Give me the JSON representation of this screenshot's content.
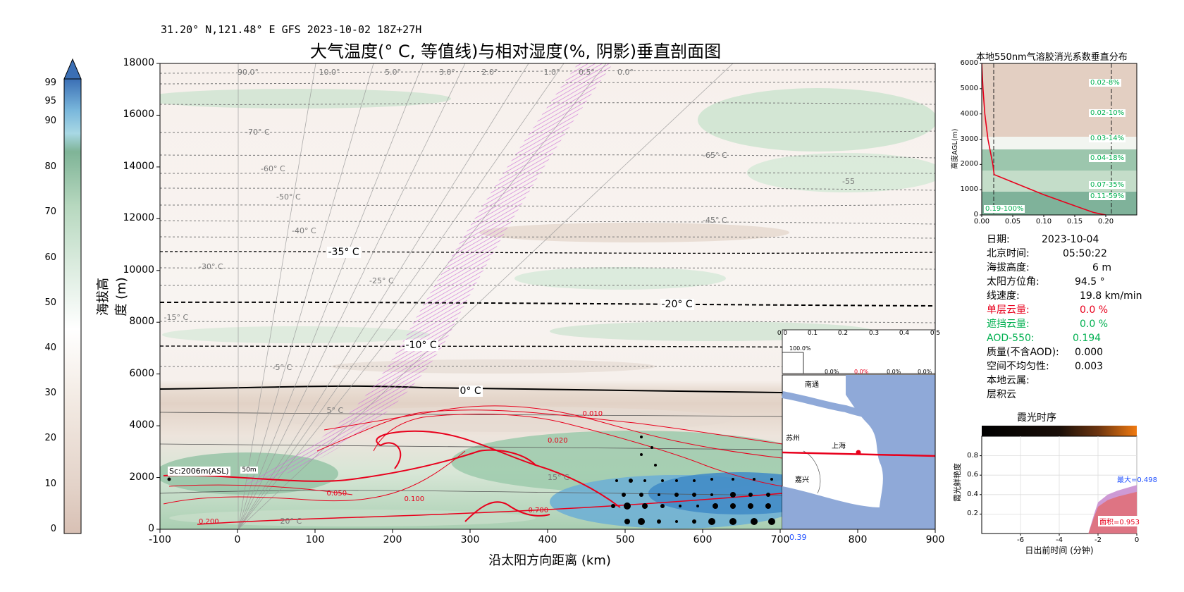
{
  "header": {
    "meta": "31.20° N,121.48° E GFS 2023-10-02 18Z+27H"
  },
  "main_chart": {
    "title": "大气温度(° C, 等值线)与相对湿度(%, 阴影)垂直剖面图",
    "xlabel": "沿太阳方向距离 (km)",
    "ylabel": "海拔高度 (m)"
  },
  "colorbar": {
    "ticks": [
      "0",
      "10",
      "20",
      "30",
      "40",
      "50",
      "60",
      "70",
      "80",
      "90",
      "95",
      "99"
    ]
  },
  "chart_data": [
    {
      "type": "contour",
      "title": "大气温度(° C, 等值线)与相对湿度(%, 阴影)垂直剖面图",
      "xlabel": "沿太阳方向距离 (km)",
      "ylabel": "海拔高度 (m)",
      "xlim": [
        -100,
        900
      ],
      "ylim": [
        0,
        18000
      ],
      "xticks": [
        "-100",
        "0",
        "100",
        "200",
        "300",
        "400",
        "500",
        "600",
        "700",
        "800",
        "900"
      ],
      "yticks": [
        "0",
        "2000",
        "4000",
        "6000",
        "8000",
        "10000",
        "12000",
        "14000",
        "16000",
        "18000"
      ],
      "isotherm_labels": [
        "-70° C",
        "-65° C",
        "-60° C",
        "-55",
        "-50° C",
        "-45° C",
        "-40° C",
        "-35° C",
        "-30° C",
        "-25° C",
        "-20° C",
        "-15° C",
        "-10° C",
        "-5° C",
        "0° C",
        "5° C",
        "15° C",
        "20° C"
      ],
      "elevation_angle_labels": [
        "90.0°",
        "10.0°",
        "5.0°",
        "3.0°",
        "2.0°",
        "1.0°",
        "0.5°",
        "0.0°"
      ],
      "aod_labels": [
        "0.010",
        "0.020",
        "0.050",
        "0.100",
        "0.200",
        "0.700"
      ],
      "annotations": [
        "Sc:2006m(ASL)",
        "50m",
        "0.39"
      ],
      "map_labels": [
        "南通",
        "苏州",
        "上海",
        "嘉兴"
      ],
      "strip_ticks": [
        "0.0",
        "0.1",
        "0.2",
        "0.3",
        "0.4",
        "0.5"
      ],
      "strip_values": [
        "100.0%",
        "0.0%",
        "0.0%",
        "0.0%",
        "0.0%"
      ]
    },
    {
      "type": "line",
      "title": "本地550nm气溶胶消光系数垂直分布",
      "ylabel": "高度AGL(m)",
      "xlim": [
        0,
        0.25
      ],
      "ylim": [
        0,
        6000
      ],
      "xticks": [
        "0.00",
        "0.05",
        "0.10",
        "0.15",
        "0.20"
      ],
      "yticks": [
        "0",
        "1000",
        "2000",
        "3000",
        "4000",
        "5000",
        "6000"
      ],
      "x": [
        0.0,
        0.002,
        0.005,
        0.01,
        0.018,
        0.02,
        0.06,
        0.1,
        0.14,
        0.18,
        0.2
      ],
      "y": [
        6000,
        5000,
        4000,
        3000,
        2000,
        1600,
        1200,
        800,
        450,
        100,
        0
      ],
      "band_labels": [
        "0.02-8%",
        "0.02-10%",
        "0.03-14%",
        "0.04-18%",
        "0.07-35%",
        "0.11-59%",
        "0.19-100%"
      ]
    },
    {
      "type": "area",
      "title": "霞光时序",
      "xlabel": "日出前时间 (分钟)",
      "ylabel": "霞光鲜艳度",
      "xlim": [
        -8,
        0
      ],
      "ylim": [
        0,
        1
      ],
      "xticks": [
        "-6",
        "-4",
        "-2",
        "0"
      ],
      "yticks": [
        "0.2",
        "0.4",
        "0.6",
        "0.8"
      ],
      "x": [
        -2.5,
        -2.2,
        -2.0,
        -1.5,
        -1.0,
        -0.5,
        0
      ],
      "y": [
        0.0,
        0.2,
        0.32,
        0.4,
        0.44,
        0.47,
        0.498
      ],
      "annotations": [
        "最大=0.498",
        "面积=0.953"
      ]
    }
  ],
  "info_panel": {
    "rows": [
      {
        "label": "日期:",
        "value": "2023-10-04"
      },
      {
        "label": "北京时间:",
        "value": "05:50:22"
      },
      {
        "label": "海拔高度:",
        "value": "6 m"
      },
      {
        "label": "太阳方位角:",
        "value": "94.5 °"
      },
      {
        "label": "线速度:",
        "value": "19.8 km/min"
      },
      {
        "label": "单层云量:",
        "value": "0.0 %"
      },
      {
        "label": "遮挡云量:",
        "value": "0.0 %"
      },
      {
        "label": "AOD-550:",
        "value": "0.194"
      },
      {
        "label": "质量(不含AOD):",
        "value": "0.000"
      },
      {
        "label": "空间不均匀性:",
        "value": "0.003"
      },
      {
        "label": "本地云属:",
        "value": ""
      },
      {
        "label": "层积云",
        "value": ""
      }
    ]
  },
  "colors": {
    "red": "#e8001c",
    "green": "#00b050",
    "blue": "#1f4fff",
    "brand_pink": "#d070d8"
  }
}
